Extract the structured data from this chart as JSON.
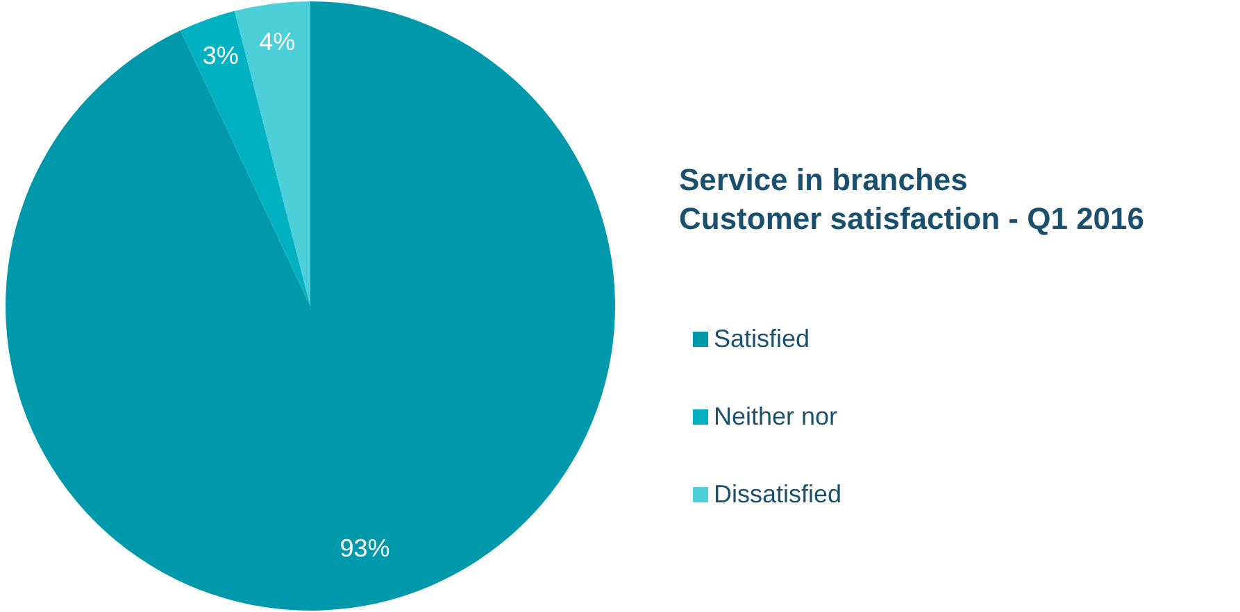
{
  "chart_data": {
    "type": "pie",
    "title": "Service in branches",
    "subtitle": "Customer satisfaction - Q1 2016",
    "categories": [
      "Satisfied",
      "Neither nor",
      "Dissatisfied"
    ],
    "values": [
      93,
      3,
      4
    ],
    "colors": [
      "#0098ab",
      "#00b1c2",
      "#4ccfd9"
    ],
    "value_labels": [
      "93%",
      "3%",
      "4%"
    ],
    "legend": "right"
  }
}
